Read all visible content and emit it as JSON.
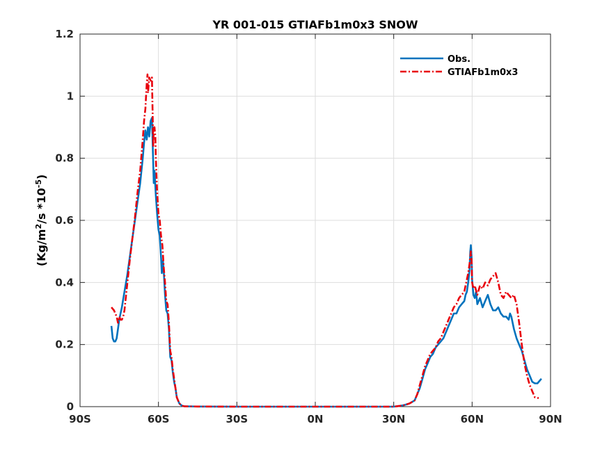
{
  "chart_data": {
    "type": "line",
    "title": "YR 001-015 GTIAFb1m0x3 SNOW",
    "xlabel": "",
    "ylabel": "(Kg/m2/s *10-5)",
    "ylabel_parts": {
      "pre": "(Kg/m",
      "sup1": "2",
      "mid": "/s *10",
      "sup2": "-5",
      "post": ")"
    },
    "xlim": [
      -90,
      90
    ],
    "ylim": [
      0,
      1.2
    ],
    "xticks": [
      -90,
      -60,
      -30,
      0,
      30,
      60,
      90
    ],
    "xtick_labels": [
      "90S",
      "60S",
      "30S",
      "0N",
      "30N",
      "60N",
      "90N"
    ],
    "yticks": [
      0,
      0.2,
      0.4,
      0.6,
      0.8,
      1,
      1.2
    ],
    "ytick_labels": [
      "0",
      "0.2",
      "0.4",
      "0.6",
      "0.8",
      "1",
      "1.2"
    ],
    "grid": true,
    "legend_position": "top-right",
    "series": [
      {
        "name": "Obs.",
        "color": "#0072BD",
        "style": "solid",
        "points": [
          [
            -78,
            0.26
          ],
          [
            -77.5,
            0.22
          ],
          [
            -77,
            0.21
          ],
          [
            -76.5,
            0.21
          ],
          [
            -76,
            0.22
          ],
          [
            -75.5,
            0.25
          ],
          [
            -75,
            0.28
          ],
          [
            -74,
            0.32
          ],
          [
            -73,
            0.37
          ],
          [
            -72,
            0.42
          ],
          [
            -71,
            0.48
          ],
          [
            -70,
            0.54
          ],
          [
            -69,
            0.6
          ],
          [
            -68,
            0.66
          ],
          [
            -67,
            0.72
          ],
          [
            -66,
            0.8
          ],
          [
            -65.5,
            0.85
          ],
          [
            -65,
            0.89
          ],
          [
            -64.5,
            0.86
          ],
          [
            -64,
            0.9
          ],
          [
            -63.5,
            0.87
          ],
          [
            -63,
            0.92
          ],
          [
            -62.5,
            0.93
          ],
          [
            -62,
            0.78
          ],
          [
            -61.8,
            0.72
          ],
          [
            -61.5,
            0.76
          ],
          [
            -61,
            0.68
          ],
          [
            -60.5,
            0.62
          ],
          [
            -60,
            0.57
          ],
          [
            -59.5,
            0.55
          ],
          [
            -59,
            0.48
          ],
          [
            -58.7,
            0.43
          ],
          [
            -58.3,
            0.47
          ],
          [
            -58,
            0.44
          ],
          [
            -57.5,
            0.36
          ],
          [
            -57,
            0.31
          ],
          [
            -56.5,
            0.3
          ],
          [
            -56,
            0.25
          ],
          [
            -55.5,
            0.16
          ],
          [
            -55,
            0.15
          ],
          [
            -54.5,
            0.11
          ],
          [
            -54,
            0.08
          ],
          [
            -53.5,
            0.06
          ],
          [
            -53,
            0.03
          ],
          [
            -52,
            0.01
          ],
          [
            -51,
            0.003
          ],
          [
            -50,
            0.001
          ],
          [
            -45,
            0.0005
          ],
          [
            -30,
            0
          ],
          [
            0,
            0
          ],
          [
            20,
            0
          ],
          [
            30,
            0
          ],
          [
            32,
            0.002
          ],
          [
            34,
            0.005
          ],
          [
            36,
            0.01
          ],
          [
            38,
            0.02
          ],
          [
            39,
            0.04
          ],
          [
            40,
            0.06
          ],
          [
            41,
            0.09
          ],
          [
            42,
            0.12
          ],
          [
            43,
            0.14
          ],
          [
            44,
            0.16
          ],
          [
            45,
            0.17
          ],
          [
            46,
            0.19
          ],
          [
            47,
            0.2
          ],
          [
            48,
            0.21
          ],
          [
            49,
            0.22
          ],
          [
            50,
            0.24
          ],
          [
            51,
            0.26
          ],
          [
            52,
            0.28
          ],
          [
            53,
            0.3
          ],
          [
            54,
            0.3
          ],
          [
            55,
            0.32
          ],
          [
            56,
            0.33
          ],
          [
            57,
            0.34
          ],
          [
            57.5,
            0.36
          ],
          [
            58,
            0.37
          ],
          [
            58.5,
            0.4
          ],
          [
            59,
            0.44
          ],
          [
            59.3,
            0.5
          ],
          [
            59.5,
            0.52
          ],
          [
            59.8,
            0.48
          ],
          [
            60,
            0.41
          ],
          [
            60.5,
            0.36
          ],
          [
            61,
            0.35
          ],
          [
            61.5,
            0.37
          ],
          [
            62,
            0.33
          ],
          [
            63,
            0.35
          ],
          [
            64,
            0.32
          ],
          [
            65,
            0.34
          ],
          [
            66,
            0.36
          ],
          [
            67,
            0.33
          ],
          [
            68,
            0.31
          ],
          [
            69,
            0.31
          ],
          [
            70,
            0.32
          ],
          [
            71,
            0.3
          ],
          [
            72,
            0.29
          ],
          [
            73,
            0.29
          ],
          [
            74,
            0.28
          ],
          [
            74.5,
            0.3
          ],
          [
            75,
            0.29
          ],
          [
            76,
            0.25
          ],
          [
            77,
            0.22
          ],
          [
            78,
            0.2
          ],
          [
            79,
            0.18
          ],
          [
            80,
            0.15
          ],
          [
            81,
            0.12
          ],
          [
            82,
            0.1
          ],
          [
            83,
            0.08
          ],
          [
            84,
            0.075
          ],
          [
            85,
            0.075
          ],
          [
            86,
            0.085
          ],
          [
            86.5,
            0.09
          ]
        ]
      },
      {
        "name": "GTIAFb1m0x3",
        "color": "#E8000B",
        "style": "dashdot",
        "points": [
          [
            -78,
            0.32
          ],
          [
            -77,
            0.31
          ],
          [
            -76,
            0.29
          ],
          [
            -75.5,
            0.27
          ],
          [
            -75,
            0.29
          ],
          [
            -74.5,
            0.28
          ],
          [
            -74,
            0.28
          ],
          [
            -73.5,
            0.29
          ],
          [
            -73,
            0.31
          ],
          [
            -72,
            0.39
          ],
          [
            -71,
            0.47
          ],
          [
            -70,
            0.54
          ],
          [
            -69,
            0.61
          ],
          [
            -68,
            0.69
          ],
          [
            -67,
            0.76
          ],
          [
            -66,
            0.86
          ],
          [
            -65.5,
            0.92
          ],
          [
            -65,
            0.96
          ],
          [
            -64.5,
            1.04
          ],
          [
            -64.2,
            1.07
          ],
          [
            -64,
            1.01
          ],
          [
            -63.5,
            1.06
          ],
          [
            -63,
            1.05
          ],
          [
            -62.5,
            1.06
          ],
          [
            -62,
            0.84
          ],
          [
            -61.8,
            0.9
          ],
          [
            -61.5,
            0.9
          ],
          [
            -61.2,
            0.87
          ],
          [
            -61,
            0.8
          ],
          [
            -60.5,
            0.69
          ],
          [
            -60,
            0.62
          ],
          [
            -59.5,
            0.6
          ],
          [
            -59,
            0.55
          ],
          [
            -58.5,
            0.52
          ],
          [
            -58,
            0.45
          ],
          [
            -57.5,
            0.4
          ],
          [
            -57,
            0.34
          ],
          [
            -56.5,
            0.33
          ],
          [
            -56,
            0.27
          ],
          [
            -55.5,
            0.18
          ],
          [
            -55,
            0.16
          ],
          [
            -54.5,
            0.12
          ],
          [
            -54,
            0.09
          ],
          [
            -53.5,
            0.06
          ],
          [
            -53,
            0.03
          ],
          [
            -52,
            0.01
          ],
          [
            -51,
            0.003
          ],
          [
            -50,
            0.001
          ],
          [
            -45,
            0.0005
          ],
          [
            -30,
            0
          ],
          [
            0,
            0
          ],
          [
            20,
            0
          ],
          [
            30,
            0
          ],
          [
            32,
            0.002
          ],
          [
            34,
            0.005
          ],
          [
            36,
            0.01
          ],
          [
            38,
            0.02
          ],
          [
            39,
            0.04
          ],
          [
            40,
            0.07
          ],
          [
            41,
            0.1
          ],
          [
            42,
            0.13
          ],
          [
            43,
            0.15
          ],
          [
            44,
            0.17
          ],
          [
            45,
            0.18
          ],
          [
            46,
            0.19
          ],
          [
            47,
            0.21
          ],
          [
            48,
            0.22
          ],
          [
            49,
            0.24
          ],
          [
            50,
            0.26
          ],
          [
            51,
            0.28
          ],
          [
            52,
            0.3
          ],
          [
            53,
            0.32
          ],
          [
            54,
            0.33
          ],
          [
            55,
            0.35
          ],
          [
            56,
            0.36
          ],
          [
            57,
            0.37
          ],
          [
            57.5,
            0.39
          ],
          [
            58,
            0.41
          ],
          [
            58.5,
            0.43
          ],
          [
            59,
            0.46
          ],
          [
            59.5,
            0.5
          ],
          [
            59.8,
            0.47
          ],
          [
            60,
            0.4
          ],
          [
            60.5,
            0.38
          ],
          [
            61,
            0.39
          ],
          [
            62,
            0.36
          ],
          [
            63,
            0.39
          ],
          [
            64,
            0.38
          ],
          [
            65,
            0.4
          ],
          [
            66,
            0.39
          ],
          [
            67,
            0.41
          ],
          [
            68,
            0.42
          ],
          [
            69,
            0.43
          ],
          [
            70,
            0.4
          ],
          [
            71,
            0.36
          ],
          [
            72,
            0.35
          ],
          [
            73,
            0.37
          ],
          [
            74,
            0.36
          ],
          [
            75,
            0.35
          ],
          [
            76,
            0.36
          ],
          [
            77,
            0.33
          ],
          [
            78,
            0.27
          ],
          [
            79,
            0.2
          ],
          [
            80,
            0.14
          ],
          [
            81,
            0.1
          ],
          [
            82,
            0.07
          ],
          [
            83,
            0.05
          ],
          [
            84,
            0.03
          ],
          [
            85,
            0.028
          ],
          [
            85.5,
            0.028
          ]
        ]
      }
    ]
  }
}
